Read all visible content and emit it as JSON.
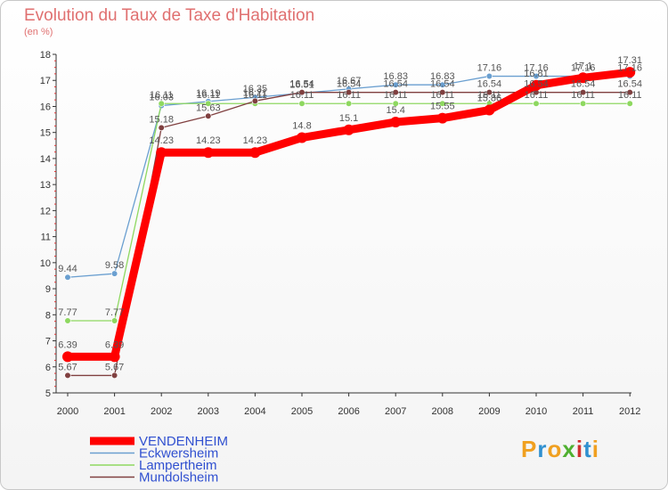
{
  "header": {
    "title": "Evolution du Taux de Taxe d'Habitation",
    "subtitle": "(en %)"
  },
  "logo": {
    "letters": [
      "P",
      "r",
      "o",
      "x",
      "i",
      "t",
      "i"
    ],
    "colors": [
      "#f0a020",
      "#3090d0",
      "#f0a020",
      "#50b030",
      "#d03030",
      "#3090d0",
      "#f0a020"
    ]
  },
  "chart_data": {
    "type": "line",
    "title": "Evolution du Taux de Taxe d'Habitation",
    "ylabel": "(en %)",
    "xlabel": "",
    "x": [
      "2000",
      "2001",
      "2002",
      "2003",
      "2004",
      "2005",
      "2006",
      "2007",
      "2008",
      "2009",
      "2010",
      "2011",
      "2012"
    ],
    "ylim": [
      5,
      18
    ],
    "yticks": [
      "5",
      "6",
      "7",
      "8",
      "9",
      "10",
      "11",
      "12",
      "13",
      "14",
      "15",
      "16",
      "17",
      "18"
    ],
    "grid": false,
    "legend_position": "bottom-left",
    "series": [
      {
        "name": "VENDENHEIM",
        "color": "#ff0000",
        "values": [
          6.39,
          6.39,
          14.23,
          14.23,
          14.23,
          14.8,
          15.1,
          15.4,
          15.55,
          15.86,
          16.81,
          17.1,
          17.31
        ],
        "labels": [
          "6.39",
          "6.39",
          "14.23",
          "14.23",
          "14.23",
          "14.8",
          "15.1",
          "15.4",
          "15.55",
          "15.86",
          "16.81",
          "17.1",
          "17.31"
        ]
      },
      {
        "name": "Eckwersheim",
        "color": "#6a9fd0",
        "values": [
          9.44,
          9.58,
          16.03,
          16.19,
          16.35,
          16.51,
          16.67,
          16.83,
          16.83,
          17.16,
          17.16,
          17.16,
          17.16
        ],
        "labels": [
          "9.44",
          "9.58",
          "16.03",
          "16.19",
          "16.35",
          "16.51",
          "16.67",
          "16.83",
          "16.83",
          "17.16",
          "17.16",
          "17.16",
          "17.16"
        ]
      },
      {
        "name": "Lampertheim",
        "color": "#8ed860",
        "values": [
          7.77,
          7.77,
          16.11,
          16.11,
          16.11,
          16.11,
          16.11,
          16.11,
          16.11,
          16.11,
          16.11,
          16.11,
          16.11
        ],
        "labels": [
          "7.77",
          "7.77",
          "16.11",
          "16.11",
          "16.11",
          "16.11",
          "16.11",
          "16.11",
          "16.11",
          "16.11",
          "16.11",
          "16.11",
          "16.11"
        ]
      },
      {
        "name": "Mundolsheim",
        "color": "#804040",
        "values": [
          5.67,
          5.67,
          15.18,
          15.63,
          16.21,
          16.54,
          16.54,
          16.54,
          16.54,
          16.54,
          16.54,
          16.54,
          16.54
        ],
        "labels": [
          "5.67",
          "5.67",
          "15.18",
          "15.63",
          "16.21",
          "16.54",
          "16.54",
          "16.54",
          "16.54",
          "16.54",
          "16.54",
          "16.54",
          "16.54"
        ]
      }
    ]
  }
}
